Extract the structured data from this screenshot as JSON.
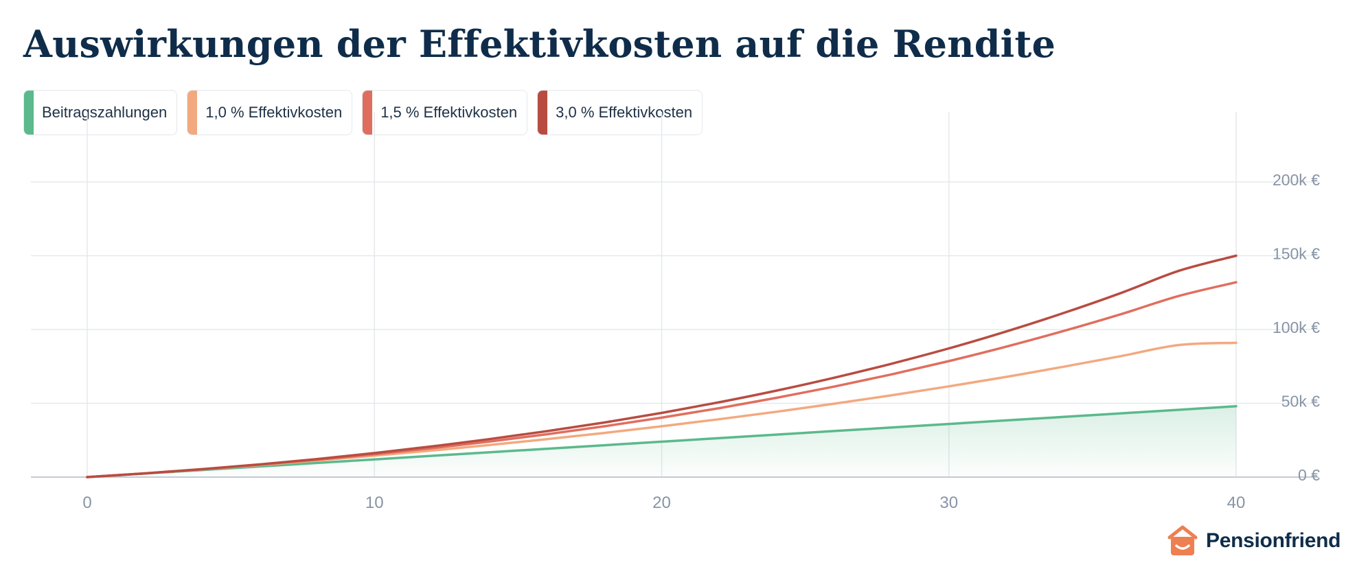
{
  "title": "Auswirkungen der Effektivkosten auf die Rendite",
  "legend": [
    {
      "label": "Beitragszahlungen",
      "color": "#5bb98c"
    },
    {
      "label": "1,0 % Effektivkosten",
      "color": "#f3a97f"
    },
    {
      "label": "1,5 % Effektivkosten",
      "color": "#e06e5e"
    },
    {
      "label": "3,0 % Effektivkosten",
      "color": "#b84c41"
    }
  ],
  "brand": {
    "name": "Pensionfriend",
    "logo_icon": "house-smile-icon",
    "logo_color": "#ee7f52"
  },
  "colors": {
    "title": "#0f2d4a",
    "grid": "#e6e8ec",
    "axis": "#c4cad3",
    "tick": "#8794a6"
  },
  "chart_data": {
    "type": "line",
    "title": "Auswirkungen der Effektivkosten auf die Rendite",
    "xlabel": "",
    "ylabel": "",
    "x": [
      0,
      2,
      4,
      6,
      8,
      10,
      12,
      14,
      16,
      18,
      20,
      22,
      24,
      26,
      28,
      30,
      32,
      34,
      36,
      38,
      40
    ],
    "xlim": [
      0,
      40
    ],
    "ylim": [
      0,
      200000
    ],
    "x_ticks": [
      0,
      10,
      20,
      30,
      40
    ],
    "x_tick_labels": [
      "0",
      "10",
      "20",
      "30",
      "40"
    ],
    "y_ticks": [
      0,
      50000,
      100000,
      150000,
      200000
    ],
    "y_tick_labels": [
      "0 €",
      "50k €",
      "100k €",
      "150k €",
      "200k €"
    ],
    "grid": true,
    "legend_position": "top-left",
    "series": [
      {
        "name": "Beitragszahlungen",
        "color": "#5bb98c",
        "fill_area": true,
        "values": [
          0,
          2400,
          4800,
          7200,
          9600,
          12000,
          14400,
          16800,
          19200,
          21600,
          24000,
          26400,
          28800,
          31200,
          33600,
          36000,
          38400,
          40800,
          43200,
          45600,
          48000
        ]
      },
      {
        "name": "1,0 % Effektivkosten",
        "color": "#f3a97f",
        "fill_area": false,
        "values": [
          0,
          2490,
          5200,
          8100,
          11200,
          14500,
          18000,
          21700,
          25700,
          29900,
          34400,
          39200,
          44300,
          49700,
          55400,
          61500,
          67900,
          74800,
          82000,
          89500,
          91000
        ]
      },
      {
        "name": "1,5 % Effektivkosten",
        "color": "#e06e5e",
        "fill_area": false,
        "values": [
          0,
          2500,
          5300,
          8400,
          11800,
          15500,
          19600,
          24100,
          29000,
          34400,
          40300,
          46700,
          53700,
          61300,
          69600,
          78600,
          88400,
          99000,
          110400,
          122700,
          132000
        ]
      },
      {
        "name": "3,0 % Effektivkosten",
        "color": "#b84c41",
        "fill_area": false,
        "values": [
          0,
          2520,
          5400,
          8600,
          12200,
          16300,
          20800,
          25700,
          31100,
          37000,
          43500,
          50700,
          58600,
          67300,
          76800,
          87200,
          98700,
          111200,
          124800,
          139700,
          150000
        ]
      }
    ]
  }
}
